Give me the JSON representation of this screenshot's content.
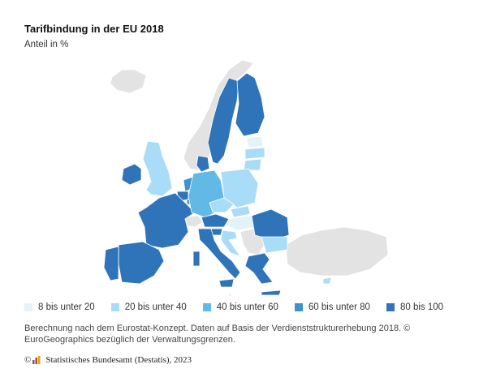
{
  "header": {
    "title": "Tarifbindung in der EU 2018",
    "subtitle": "Anteil in %"
  },
  "colors": {
    "non_eu": "#e3e3e3",
    "border": "#ffffff",
    "class_1": "#e2f3fc",
    "class_2": "#a9dcf6",
    "class_3": "#63b9e6",
    "class_4": "#3f91d0",
    "class_5": "#2f74b9"
  },
  "legend": [
    {
      "label": "8 bis unter 20",
      "color": "#e2f3fc"
    },
    {
      "label": "20 bis unter 40",
      "color": "#a9dcf6"
    },
    {
      "label": "40 bis unter 60",
      "color": "#63b9e6"
    },
    {
      "label": "60 bis unter 80",
      "color": "#3f91d0"
    },
    {
      "label": "80 bis 100",
      "color": "#2f74b9"
    }
  ],
  "map_classes": {
    "iceland": 0,
    "norway": 0,
    "uk": 2,
    "switzerland": 0,
    "balkans": 0,
    "turkey": 0,
    "ireland": 5,
    "sweden": 5,
    "finland": 5,
    "estonia": 1,
    "latvia": 2,
    "lithuania": 2,
    "denmark": 5,
    "netherlands": 4,
    "belgium": 5,
    "luxembourg": 4,
    "france": 5,
    "spain": 5,
    "portugal": 5,
    "germany": 3,
    "poland": 2,
    "czechia": 2,
    "slovakia": 2,
    "hungary": 1,
    "austria": 5,
    "slovenia": 5,
    "croatia": 2,
    "romania": 5,
    "bulgaria": 2,
    "italy": 5,
    "greece": 5,
    "cyprus": 2,
    "malta": 0
  },
  "source_text": "Berechnung nach dem Eurostat-Konzept. Daten auf Basis der Verdienststrukturerhebung 2018. © EuroGeographics bezüglich der Verwaltungsgrenzen.",
  "credit": {
    "copyright": "©",
    "text": "Statistisches Bundesamt (Destatis), 2023"
  }
}
